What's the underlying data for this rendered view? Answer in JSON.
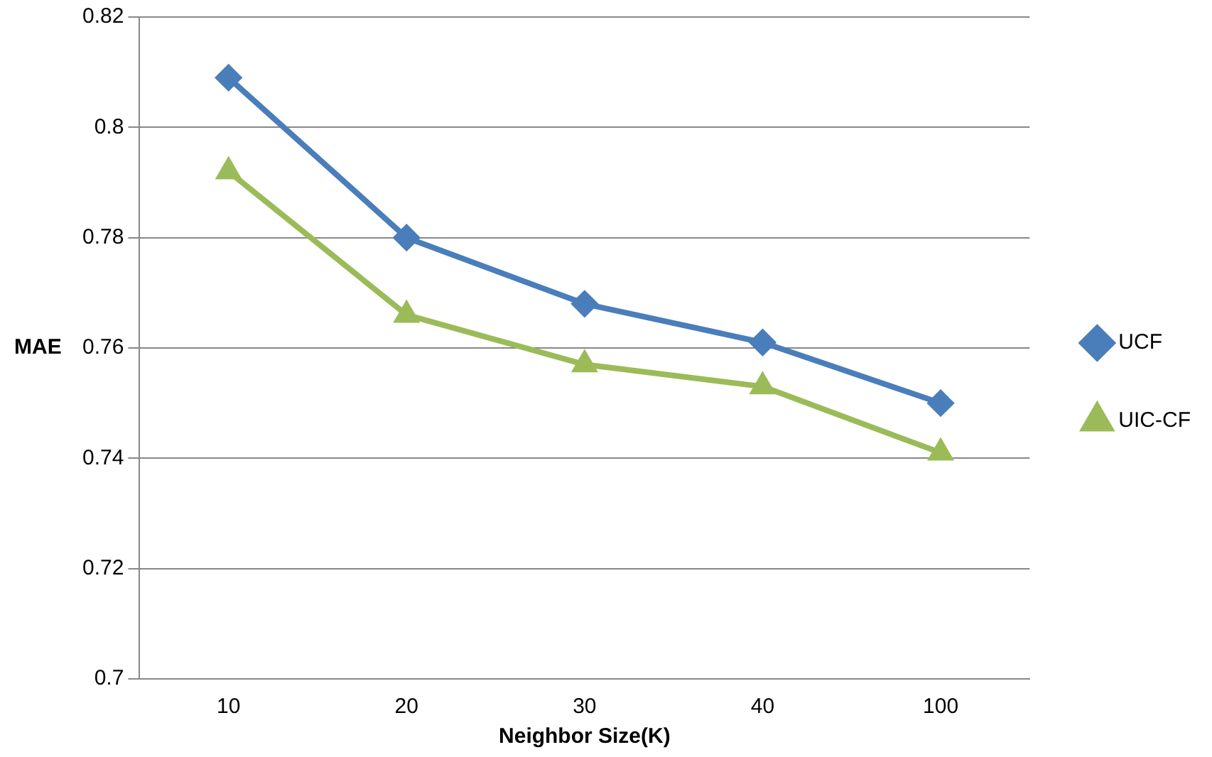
{
  "chart_data": {
    "type": "line",
    "xlabel": "Neighbor Size(K)",
    "ylabel": "MAE",
    "categories": [
      "10",
      "20",
      "30",
      "40",
      "100"
    ],
    "series": [
      {
        "name": "UCF",
        "color": "#4a7ebb",
        "marker": "diamond",
        "values": [
          0.809,
          0.78,
          0.768,
          0.761,
          0.75
        ]
      },
      {
        "name": "UIC-CF",
        "color": "#9bbb59",
        "marker": "triangle",
        "values": [
          0.792,
          0.766,
          0.757,
          0.753,
          0.741
        ]
      }
    ],
    "ylim": [
      0.7,
      0.82
    ],
    "yticks": [
      0.7,
      0.72,
      0.74,
      0.76,
      0.78,
      0.8,
      0.82
    ],
    "grid": "y",
    "legend": "right",
    "line_style": "solid"
  }
}
